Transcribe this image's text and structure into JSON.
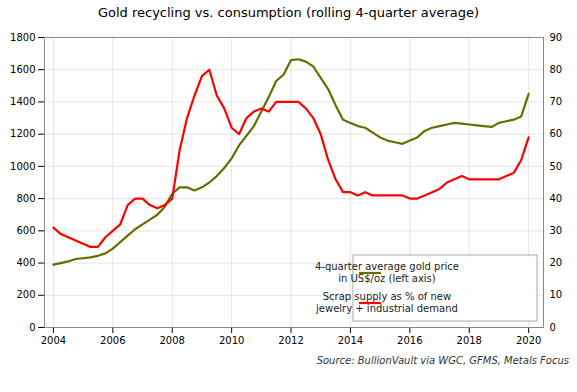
{
  "chart_data": {
    "type": "line",
    "title": "Gold recycling vs. consumption (rolling 4-quarter average)",
    "annotations": [
      "Source: BullionVault via WGC, GFMS, Metals Focus"
    ],
    "x": [
      2004.0,
      2004.25,
      2004.5,
      2004.75,
      2005.0,
      2005.25,
      2005.5,
      2005.75,
      2006.0,
      2006.25,
      2006.5,
      2006.75,
      2007.0,
      2007.25,
      2007.5,
      2007.75,
      2008.0,
      2008.25,
      2008.5,
      2008.75,
      2009.0,
      2009.25,
      2009.5,
      2009.75,
      2010.0,
      2010.25,
      2010.5,
      2010.75,
      2011.0,
      2011.25,
      2011.5,
      2011.75,
      2012.0,
      2012.25,
      2012.5,
      2012.75,
      2013.0,
      2013.25,
      2013.5,
      2013.75,
      2014.0,
      2014.25,
      2014.5,
      2014.75,
      2015.0,
      2015.25,
      2015.5,
      2015.75,
      2016.0,
      2016.25,
      2016.5,
      2016.75,
      2017.0,
      2017.25,
      2017.5,
      2017.75,
      2018.0,
      2018.25,
      2018.5,
      2018.75,
      2019.0,
      2019.25,
      2019.5,
      2019.75,
      2020.0
    ],
    "series": [
      {
        "name": "4-quarter average gold price\nin US$/oz (left axis)",
        "color": "#6b6b00",
        "values": [
          390,
          400,
          410,
          425,
          430,
          435,
          445,
          460,
          490,
          530,
          570,
          610,
          640,
          670,
          700,
          750,
          830,
          870,
          870,
          850,
          870,
          900,
          940,
          990,
          1050,
          1130,
          1190,
          1250,
          1340,
          1430,
          1530,
          1570,
          1660,
          1665,
          1650,
          1620,
          1550,
          1480,
          1380,
          1290,
          1270,
          1250,
          1240,
          1210,
          1180,
          1160,
          1150,
          1140,
          1160,
          1180,
          1220,
          1240,
          1250,
          1260,
          1270,
          1265,
          1260,
          1255,
          1250,
          1245,
          1270,
          1280,
          1290,
          1310,
          1450
        ]
      },
      {
        "name": "Scrap supply as % of new\njewelry + industrial demand",
        "color": "#ff0000",
        "axis": "y2",
        "values": [
          31,
          29,
          28,
          27,
          26,
          25,
          25,
          28,
          30,
          32,
          38,
          40,
          40,
          38,
          37,
          38,
          40,
          55,
          65,
          72,
          78,
          80,
          72,
          68,
          62,
          60,
          65,
          67,
          68,
          67,
          70,
          70,
          70,
          70,
          68,
          65,
          60,
          52,
          46,
          42,
          42,
          41,
          42,
          41,
          41,
          41,
          41,
          41,
          40,
          40,
          41,
          42,
          43,
          45,
          46,
          47,
          46,
          46,
          46,
          46,
          46,
          47,
          48,
          52,
          59
        ]
      }
    ],
    "xlim": [
      2003.7,
      2020.5
    ],
    "xticks": [
      2004,
      2006,
      2008,
      2010,
      2012,
      2014,
      2016,
      2018,
      2020
    ],
    "ylim": [
      0,
      1800
    ],
    "yticks": [
      0,
      200,
      400,
      600,
      800,
      1000,
      1200,
      1400,
      1600,
      1800
    ],
    "y2lim": [
      0,
      90
    ],
    "y2ticks": [
      0,
      10,
      20,
      30,
      40,
      50,
      60,
      70,
      80,
      90
    ],
    "grid": true,
    "legend": "lower right"
  }
}
